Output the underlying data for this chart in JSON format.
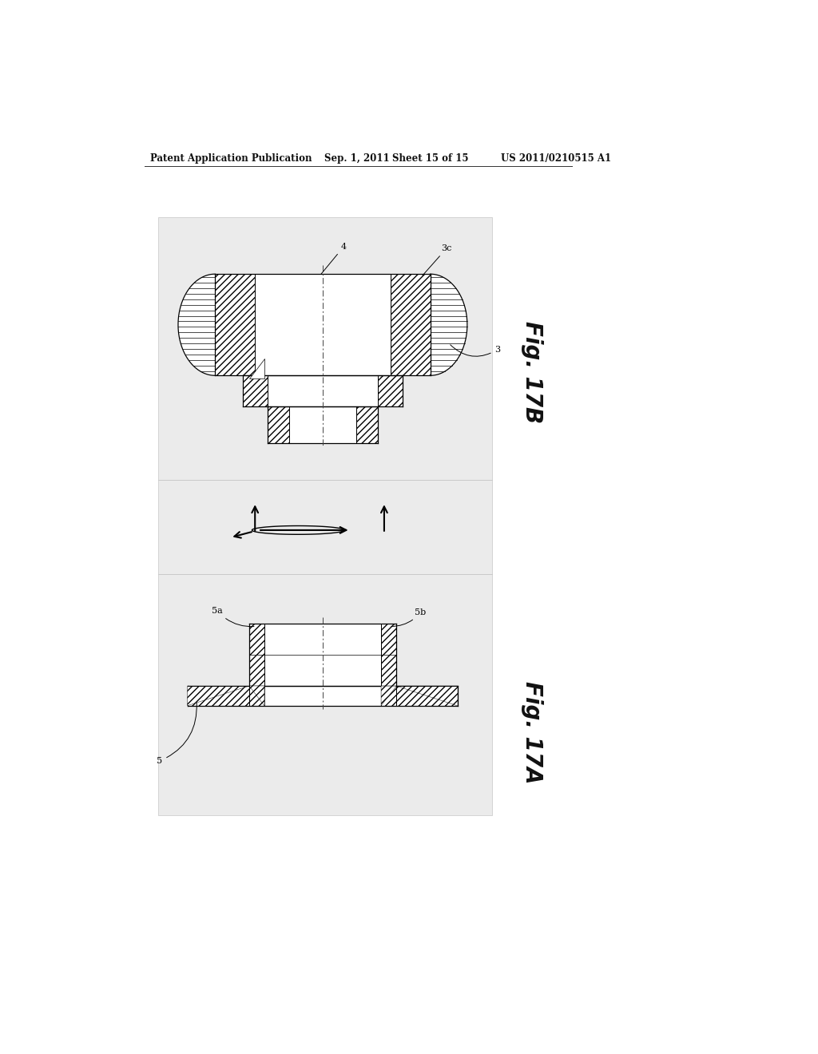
{
  "page_bg": "#ffffff",
  "panel_bg": "#ebebeb",
  "header_text": "Patent Application Publication",
  "header_date": "Sep. 1, 2011",
  "header_sheet": "Sheet 15 of 15",
  "header_patent": "US 2011/0210515 A1",
  "fig17b_label": "Fig. 17B",
  "fig17a_label": "Fig. 17A",
  "label_4": "4",
  "label_3c": "3c",
  "label_3": "3",
  "label_5a": "5a",
  "label_5b": "5b",
  "label_5": "5"
}
